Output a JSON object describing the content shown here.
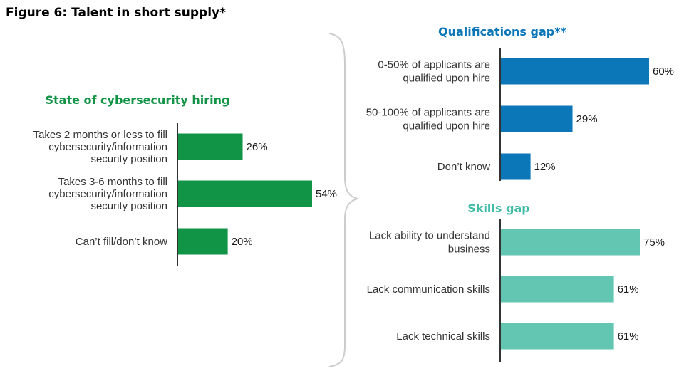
{
  "figure": {
    "title": "Figure 6: Talent in short supply*"
  },
  "colors": {
    "hiring": "#129447",
    "qualifications": "#0b76b8",
    "skills": "#62c6b2",
    "axis": "#333333",
    "bracket": "#cccccc"
  },
  "chart_data": [
    {
      "type": "bar",
      "orientation": "horizontal",
      "title": "State of cybersecurity hiring",
      "categories": [
        [
          "Takes 2 months or less to fill",
          "cybersecurity/information",
          "security position"
        ],
        [
          "Takes 3-6 months to fill",
          "cybersecurity/information",
          "security position"
        ],
        [
          "Can’t fill/don’t know"
        ]
      ],
      "values": [
        26,
        54,
        20
      ],
      "value_labels": [
        "26%",
        "54%",
        "20%"
      ],
      "unit": "%"
    },
    {
      "type": "bar",
      "orientation": "horizontal",
      "title": "Qualifications gap**",
      "categories": [
        [
          "0-50% of applicants are",
          "qualified upon hire"
        ],
        [
          "50-100% of applicants are",
          "qualified upon hire"
        ],
        [
          "Don’t know"
        ]
      ],
      "values": [
        60,
        29,
        12
      ],
      "value_labels": [
        "60%",
        "29%",
        "12%"
      ],
      "unit": "%"
    },
    {
      "type": "bar",
      "orientation": "horizontal",
      "title": "Skills gap",
      "categories": [
        [
          "Lack ability to understand",
          "business"
        ],
        [
          "Lack communication skills"
        ],
        [
          "Lack technical skills"
        ]
      ],
      "values": [
        75,
        61,
        61
      ],
      "value_labels": [
        "75%",
        "61%",
        "61%"
      ],
      "unit": "%"
    }
  ]
}
